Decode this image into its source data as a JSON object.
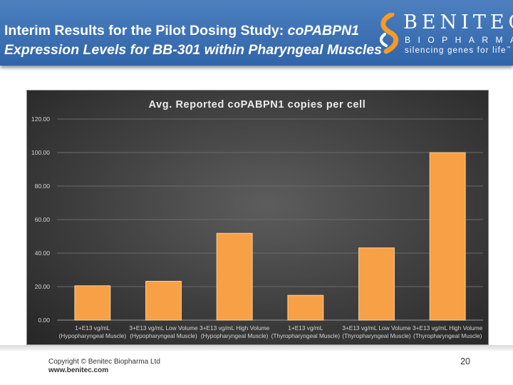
{
  "slide": {
    "title_main": "Interim Results for the Pilot Dosing Study: ",
    "title_italic_1": "coPABPN1",
    "title_line2": "Expression Levels for BB-301 within Pharyngeal Muscles"
  },
  "logo": {
    "name": "BENITEC",
    "sub": "BIOPHARMA",
    "tagline": "silencing genes for life",
    "trademark": "™"
  },
  "footer": {
    "copyright": "Copyright © Benitec Biopharma Ltd",
    "website": "www.benitec.com",
    "page_number": "20"
  },
  "colors": {
    "header": "#3a6eb3",
    "bar": "#f7a046",
    "chart_background": "#4a4a4a"
  },
  "chart_data": {
    "type": "bar",
    "title": "Avg. Reported coPABPN1 copies per cell",
    "xlabel": "",
    "ylabel": "",
    "ylim": [
      0,
      120
    ],
    "yticks": [
      "0.00",
      "20.00",
      "40.00",
      "60.00",
      "80.00",
      "100.00",
      "120.00"
    ],
    "grid": true,
    "categories": [
      [
        "1+E13 vg/mL",
        "(Hypopharyngeal Muscle)"
      ],
      [
        "3+E13 vg/mL Low Volume",
        "(Hypopharyngeal Muscle)"
      ],
      [
        "3+E13 vg/mL High Volume",
        "(Hypopharyngeal Muscle)"
      ],
      [
        "1+E13 vg/mL",
        "(Thyropharyngeal Muscle)"
      ],
      [
        "3+E13 vg/mL Low Volume",
        "(Thyropharyngeal Muscle)"
      ],
      [
        "3+E13 vg/mL High Volume",
        "(Thyropharyngeal Muscle)"
      ]
    ],
    "values": [
      20.5,
      23.2,
      51.8,
      14.8,
      43.1,
      100.0
    ]
  }
}
